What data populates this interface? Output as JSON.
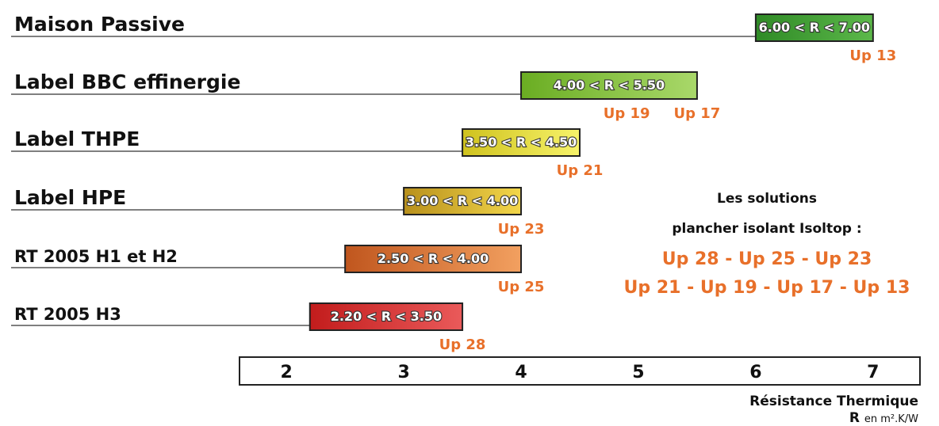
{
  "chart_data": {
    "type": "bar",
    "orientation": "horizontal-range",
    "categories": [
      "Maison Passive",
      "Label BBC effinergie",
      "Label THPE",
      "Label HPE",
      "RT 2005  H1 et H2",
      "RT 2005  H3"
    ],
    "series": [
      {
        "ranges": [
          [
            6.0,
            7.0
          ],
          [
            4.0,
            5.5
          ],
          [
            3.5,
            4.5
          ],
          [
            3.0,
            4.0
          ],
          [
            2.5,
            4.0
          ],
          [
            2.2,
            3.5
          ]
        ],
        "bar_labels": [
          "6.00 < R < 7.00",
          "4.00 < R < 5.50",
          "3.50 < R < 4.50",
          "3.00 < R < 4.00",
          "2.50 < R < 4.00",
          "2.20 < R < 3.50"
        ],
        "colors": [
          "#3e9b2e",
          "#7fbf2a",
          "#e6e23a",
          "#d9b52a",
          "#e0702a",
          "#d62c2c"
        ]
      }
    ],
    "annotations": [
      {
        "text": "Up 13",
        "x": 7.0
      },
      {
        "text": "Up 19",
        "x": 4.9
      },
      {
        "text": "Up 17",
        "x": 5.5
      },
      {
        "text": "Up 21",
        "x": 4.5
      },
      {
        "text": "Up 23",
        "x": 4.0
      },
      {
        "text": "Up 25",
        "x": 4.0
      },
      {
        "text": "Up 28",
        "x": 3.5
      }
    ],
    "annotation_rows": [
      0,
      1,
      1,
      2,
      3,
      4,
      5
    ],
    "xticks": [
      "2",
      "3",
      "4",
      "5",
      "6",
      "7"
    ],
    "xlim": [
      1.6,
      7.4
    ],
    "xlabel": "Résistance Thermique",
    "xunit_symbol": "R",
    "xunit": "en m².K/W",
    "grid": false
  },
  "side_note": {
    "heading_lines": [
      "Les solutions",
      "plancher isolant Isoltop :"
    ],
    "lines": [
      "Up 28 - Up 25 - Up 23",
      "Up 21 - Up 19 - Up 17 - Up 13"
    ]
  },
  "colors": {
    "accent_orange": "#e8702a",
    "text": "#111111"
  }
}
